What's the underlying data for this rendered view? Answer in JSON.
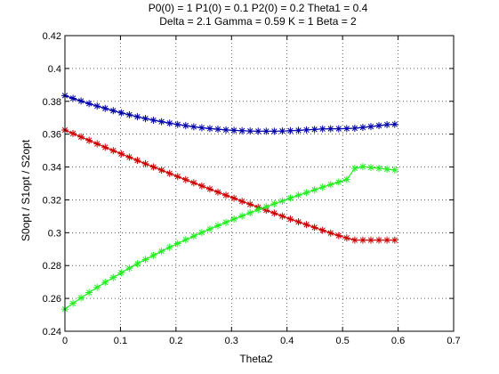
{
  "chart_data": {
    "type": "line",
    "title_lines": [
      "P0(0) = 1 P1(0) = 0.1 P2(0) = 0.2 Theta1 = 0.4",
      "Delta = 2.1 Gamma = 0.59 K = 1 Beta = 2"
    ],
    "xlabel": "Theta2",
    "ylabel": "S0opt / S1opt / S2opt",
    "xlim": [
      0,
      0.7
    ],
    "ylim": [
      0.24,
      0.42
    ],
    "xticks": [
      "0",
      "0.1",
      "0.2",
      "0.3",
      "0.4",
      "0.5",
      "0.6",
      "0.7"
    ],
    "yticks": [
      "0.24",
      "0.26",
      "0.28",
      "0.3",
      "0.32",
      "0.34",
      "0.36",
      "0.38",
      "0.4",
      "0.42"
    ],
    "grid": true,
    "marker": "*",
    "x": [
      0,
      0.0145,
      0.029,
      0.0435,
      0.058,
      0.0725,
      0.087,
      0.1015,
      0.116,
      0.1305,
      0.145,
      0.1595,
      0.174,
      0.1885,
      0.203,
      0.2175,
      0.232,
      0.2465,
      0.261,
      0.2755,
      0.29,
      0.3045,
      0.319,
      0.3335,
      0.348,
      0.3625,
      0.377,
      0.3915,
      0.406,
      0.4205,
      0.435,
      0.4495,
      0.464,
      0.4785,
      0.493,
      0.5075,
      0.522,
      0.5365,
      0.551,
      0.5655,
      0.58,
      0.594
    ],
    "series": [
      {
        "color": "#0000aa",
        "values": [
          0.3835,
          0.3818,
          0.3802,
          0.3786,
          0.3771,
          0.3757,
          0.3743,
          0.373,
          0.3718,
          0.3706,
          0.3695,
          0.3685,
          0.3676,
          0.3667,
          0.3659,
          0.3652,
          0.3645,
          0.3639,
          0.3634,
          0.363,
          0.3626,
          0.3623,
          0.3621,
          0.3619,
          0.3618,
          0.3618,
          0.3618,
          0.3619,
          0.3621,
          0.3623,
          0.3626,
          0.3629,
          0.3632,
          0.3633,
          0.3633,
          0.3634,
          0.3636,
          0.3641,
          0.3646,
          0.3652,
          0.3658,
          0.366
        ]
      },
      {
        "color": "#cc0000",
        "values": [
          0.3625,
          0.3604,
          0.3583,
          0.3562,
          0.3541,
          0.352,
          0.35,
          0.348,
          0.346,
          0.344,
          0.342,
          0.34,
          0.3381,
          0.3361,
          0.3342,
          0.3323,
          0.3304,
          0.3285,
          0.3266,
          0.3247,
          0.3228,
          0.321,
          0.3191,
          0.3173,
          0.3155,
          0.3137,
          0.3119,
          0.3101,
          0.3083,
          0.3066,
          0.3049,
          0.3032,
          0.3015,
          0.2998,
          0.2982,
          0.2968,
          0.2955,
          0.2955,
          0.2955,
          0.2955,
          0.2955,
          0.2955
        ]
      },
      {
        "color": "#22ee22",
        "values": [
          0.2535,
          0.257,
          0.2603,
          0.2636,
          0.2667,
          0.2698,
          0.2727,
          0.2756,
          0.2784,
          0.2811,
          0.2837,
          0.2862,
          0.2887,
          0.2911,
          0.2934,
          0.2957,
          0.2979,
          0.3001,
          0.3022,
          0.3043,
          0.3063,
          0.3083,
          0.3102,
          0.3121,
          0.314,
          0.3158,
          0.3176,
          0.3193,
          0.3211,
          0.3228,
          0.3244,
          0.3261,
          0.3277,
          0.3293,
          0.3308,
          0.3324,
          0.3392,
          0.3402,
          0.3397,
          0.3392,
          0.3387,
          0.3382
        ]
      }
    ]
  }
}
